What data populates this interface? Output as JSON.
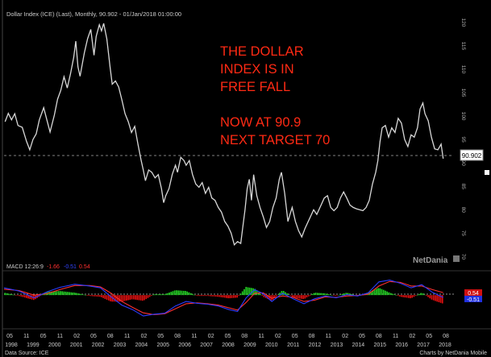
{
  "header": {
    "title": "Dollar Index (ICE) (Last), Monthly, 90.902 - 01/Jan/2018 01:00:00"
  },
  "annotation": {
    "lines": [
      "THE DOLLAR",
      "INDEX IS  IN",
      "FREE FALL",
      "",
      "NOW AT 90.9",
      "NEXT TARGET 70"
    ],
    "color": "#ff2a14"
  },
  "watermark": "NetDania",
  "footer": {
    "source": "Data Source: ICE",
    "credit": "Charts by NetDania Mobile"
  },
  "colors": {
    "background": "#000000",
    "price_line": "#d8d8d8",
    "macd_line": "#2b3cff",
    "signal_line": "#ff3030",
    "hist_pos": "#22cc22",
    "hist_neg": "#e01010"
  },
  "chart_data": [
    {
      "type": "line",
      "title": "Dollar Index (ICE) (Last), Monthly, 90.902 - 01/Jan/2018 01:00:00",
      "ylim": [
        68,
        121
      ],
      "y_ticks": [
        "70",
        "75",
        "80",
        "85",
        "90",
        "95",
        "100",
        "105",
        "110",
        "115",
        "120"
      ],
      "last_value_label": "90.902",
      "series": [
        {
          "points": [
            [
              1997.55,
              98.8
            ],
            [
              1997.7,
              100.6
            ],
            [
              1997.85,
              99.2
            ],
            [
              1998.0,
              100.5
            ],
            [
              1998.15,
              98.0
            ],
            [
              1998.35,
              97.6
            ],
            [
              1998.55,
              94.6
            ],
            [
              1998.7,
              92.8
            ],
            [
              1998.85,
              95.0
            ],
            [
              1999.0,
              96.2
            ],
            [
              1999.15,
              99.2
            ],
            [
              1999.35,
              101.8
            ],
            [
              1999.5,
              99.2
            ],
            [
              1999.65,
              96.6
            ],
            [
              1999.85,
              100.2
            ],
            [
              2000.0,
              103.6
            ],
            [
              2000.15,
              105.5
            ],
            [
              2000.3,
              108.4
            ],
            [
              2000.45,
              106.0
            ],
            [
              2000.6,
              109.0
            ],
            [
              2000.75,
              112.5
            ],
            [
              2000.85,
              116.0
            ],
            [
              2000.95,
              110.5
            ],
            [
              2001.05,
              108.5
            ],
            [
              2001.25,
              113.5
            ],
            [
              2001.4,
              116.5
            ],
            [
              2001.55,
              118.5
            ],
            [
              2001.7,
              113.0
            ],
            [
              2001.8,
              117.0
            ],
            [
              2001.95,
              119.5
            ],
            [
              2002.05,
              118.2
            ],
            [
              2002.15,
              119.8
            ],
            [
              2002.3,
              116.5
            ],
            [
              2002.45,
              110.5
            ],
            [
              2002.55,
              106.8
            ],
            [
              2002.7,
              107.5
            ],
            [
              2002.85,
              106.2
            ],
            [
              2003.0,
              103.5
            ],
            [
              2003.15,
              100.5
            ],
            [
              2003.3,
              98.8
            ],
            [
              2003.45,
              96.5
            ],
            [
              2003.6,
              97.8
            ],
            [
              2003.75,
              94.0
            ],
            [
              2003.9,
              90.5
            ],
            [
              2004.0,
              88.5
            ],
            [
              2004.1,
              86.2
            ],
            [
              2004.25,
              88.5
            ],
            [
              2004.4,
              88.0
            ],
            [
              2004.55,
              86.8
            ],
            [
              2004.7,
              87.5
            ],
            [
              2004.85,
              84.5
            ],
            [
              2004.95,
              81.5
            ],
            [
              2005.05,
              83.0
            ],
            [
              2005.2,
              84.5
            ],
            [
              2005.35,
              87.5
            ],
            [
              2005.5,
              89.5
            ],
            [
              2005.6,
              88.0
            ],
            [
              2005.75,
              91.2
            ],
            [
              2005.9,
              90.5
            ],
            [
              2006.0,
              89.5
            ],
            [
              2006.15,
              90.5
            ],
            [
              2006.3,
              87.5
            ],
            [
              2006.45,
              85.5
            ],
            [
              2006.6,
              84.8
            ],
            [
              2006.75,
              85.8
            ],
            [
              2006.9,
              83.5
            ],
            [
              2007.05,
              84.8
            ],
            [
              2007.2,
              82.5
            ],
            [
              2007.35,
              82.0
            ],
            [
              2007.5,
              80.5
            ],
            [
              2007.65,
              79.5
            ],
            [
              2007.8,
              77.5
            ],
            [
              2007.95,
              76.5
            ],
            [
              2008.1,
              75.0
            ],
            [
              2008.25,
              72.5
            ],
            [
              2008.4,
              73.2
            ],
            [
              2008.55,
              72.8
            ],
            [
              2008.65,
              76.5
            ],
            [
              2008.75,
              80.0
            ],
            [
              2008.85,
              84.5
            ],
            [
              2008.95,
              86.5
            ],
            [
              2009.05,
              82.0
            ],
            [
              2009.15,
              87.5
            ],
            [
              2009.3,
              83.0
            ],
            [
              2009.45,
              80.5
            ],
            [
              2009.6,
              78.5
            ],
            [
              2009.75,
              76.2
            ],
            [
              2009.9,
              77.5
            ],
            [
              2010.05,
              80.5
            ],
            [
              2010.2,
              82.5
            ],
            [
              2010.35,
              86.5
            ],
            [
              2010.45,
              88.0
            ],
            [
              2010.6,
              83.5
            ],
            [
              2010.75,
              77.5
            ],
            [
              2010.85,
              79.0
            ],
            [
              2010.95,
              80.5
            ],
            [
              2011.1,
              77.5
            ],
            [
              2011.25,
              75.5
            ],
            [
              2011.4,
              74.2
            ],
            [
              2011.55,
              76.0
            ],
            [
              2011.7,
              77.5
            ],
            [
              2011.8,
              78.5
            ],
            [
              2011.95,
              80.0
            ],
            [
              2012.1,
              79.0
            ],
            [
              2012.25,
              80.5
            ],
            [
              2012.45,
              82.5
            ],
            [
              2012.6,
              83.0
            ],
            [
              2012.75,
              80.5
            ],
            [
              2012.9,
              79.8
            ],
            [
              2013.05,
              80.5
            ],
            [
              2013.2,
              82.5
            ],
            [
              2013.35,
              83.8
            ],
            [
              2013.5,
              82.5
            ],
            [
              2013.65,
              81.0
            ],
            [
              2013.8,
              80.5
            ],
            [
              2013.95,
              80.2
            ],
            [
              2014.1,
              80.0
            ],
            [
              2014.25,
              79.8
            ],
            [
              2014.4,
              80.5
            ],
            [
              2014.55,
              82.0
            ],
            [
              2014.7,
              85.5
            ],
            [
              2014.85,
              88.0
            ],
            [
              2014.95,
              90.5
            ],
            [
              2015.05,
              94.5
            ],
            [
              2015.15,
              97.5
            ],
            [
              2015.3,
              98.0
            ],
            [
              2015.45,
              95.5
            ],
            [
              2015.6,
              97.5
            ],
            [
              2015.75,
              96.5
            ],
            [
              2015.9,
              99.5
            ],
            [
              2016.05,
              98.5
            ],
            [
              2016.2,
              95.0
            ],
            [
              2016.35,
              93.5
            ],
            [
              2016.5,
              96.0
            ],
            [
              2016.65,
              95.5
            ],
            [
              2016.8,
              97.5
            ],
            [
              2016.92,
              101.5
            ],
            [
              2017.05,
              102.8
            ],
            [
              2017.15,
              100.5
            ],
            [
              2017.3,
              99.0
            ],
            [
              2017.45,
              95.5
            ],
            [
              2017.6,
              93.0
            ],
            [
              2017.75,
              92.8
            ],
            [
              2017.9,
              94.0
            ],
            [
              2018.0,
              90.902
            ]
          ]
        }
      ]
    },
    {
      "type": "line",
      "title": "MACD 12:26:9",
      "ylim": [
        -6,
        5
      ],
      "legend_values": [
        "-1.66",
        "-0.51",
        "0.54"
      ],
      "value_labels": [
        "0.54",
        "-0.51"
      ],
      "series": [
        {
          "name": "MACD",
          "points": [
            [
              1997.5,
              1.6
            ],
            [
              1998.2,
              0.9
            ],
            [
              1998.9,
              -0.6
            ],
            [
              1999.5,
              0.7
            ],
            [
              2000.1,
              1.7
            ],
            [
              2000.8,
              2.4
            ],
            [
              2001.5,
              2.0
            ],
            [
              2002.0,
              1.6
            ],
            [
              2002.5,
              -0.4
            ],
            [
              2003.0,
              -2.2
            ],
            [
              2003.5,
              -3.2
            ],
            [
              2004.0,
              -4.6
            ],
            [
              2004.5,
              -4.2
            ],
            [
              2005.0,
              -4.0
            ],
            [
              2005.5,
              -2.4
            ],
            [
              2006.0,
              -1.4
            ],
            [
              2006.5,
              -1.8
            ],
            [
              2007.0,
              -2.0
            ],
            [
              2007.5,
              -2.4
            ],
            [
              2008.0,
              -3.2
            ],
            [
              2008.4,
              -3.6
            ],
            [
              2008.8,
              -0.6
            ],
            [
              2009.2,
              1.2
            ],
            [
              2009.6,
              0.3
            ],
            [
              2010.0,
              -1.4
            ],
            [
              2010.5,
              0.4
            ],
            [
              2011.0,
              -0.8
            ],
            [
              2011.5,
              -1.9
            ],
            [
              2012.0,
              -0.8
            ],
            [
              2012.5,
              -0.2
            ],
            [
              2013.0,
              -0.6
            ],
            [
              2013.5,
              0.1
            ],
            [
              2014.0,
              -0.2
            ],
            [
              2014.5,
              0.5
            ],
            [
              2015.0,
              2.9
            ],
            [
              2015.5,
              3.3
            ],
            [
              2016.0,
              2.6
            ],
            [
              2016.5,
              1.6
            ],
            [
              2017.0,
              2.3
            ],
            [
              2017.5,
              0.6
            ],
            [
              2018.0,
              -0.51
            ]
          ]
        },
        {
          "name": "Signal",
          "points": [
            [
              1997.5,
              1.3
            ],
            [
              1998.2,
              1.0
            ],
            [
              1998.9,
              0.0
            ],
            [
              1999.5,
              0.3
            ],
            [
              2000.1,
              1.2
            ],
            [
              2000.8,
              2.1
            ],
            [
              2001.5,
              2.1
            ],
            [
              2002.0,
              1.8
            ],
            [
              2002.5,
              0.4
            ],
            [
              2003.0,
              -1.4
            ],
            [
              2003.5,
              -2.7
            ],
            [
              2004.0,
              -3.9
            ],
            [
              2004.5,
              -4.3
            ],
            [
              2005.0,
              -4.1
            ],
            [
              2005.5,
              -3.0
            ],
            [
              2006.0,
              -1.9
            ],
            [
              2006.5,
              -1.7
            ],
            [
              2007.0,
              -1.9
            ],
            [
              2007.5,
              -2.2
            ],
            [
              2008.0,
              -2.8
            ],
            [
              2008.4,
              -3.3
            ],
            [
              2008.8,
              -1.6
            ],
            [
              2009.2,
              0.4
            ],
            [
              2009.6,
              0.5
            ],
            [
              2010.0,
              -0.7
            ],
            [
              2010.5,
              -0.2
            ],
            [
              2011.0,
              -0.5
            ],
            [
              2011.5,
              -1.4
            ],
            [
              2012.0,
              -1.1
            ],
            [
              2012.5,
              -0.4
            ],
            [
              2013.0,
              -0.5
            ],
            [
              2013.5,
              -0.2
            ],
            [
              2014.0,
              -0.1
            ],
            [
              2014.5,
              0.2
            ],
            [
              2015.0,
              2.0
            ],
            [
              2015.5,
              3.0
            ],
            [
              2016.0,
              2.8
            ],
            [
              2016.5,
              2.0
            ],
            [
              2017.0,
              2.0
            ],
            [
              2017.5,
              1.2
            ],
            [
              2018.0,
              0.54
            ]
          ]
        }
      ]
    }
  ],
  "x_axis": {
    "months": [
      "05",
      "11",
      "05",
      "11",
      "02",
      "05",
      "08",
      "11",
      "02",
      "05",
      "08",
      "11",
      "02",
      "05",
      "08",
      "11",
      "02",
      "05",
      "08",
      "11",
      "02",
      "05",
      "08",
      "11",
      "02",
      "05",
      "08"
    ],
    "years": [
      "1998",
      "1999",
      "2000",
      "2001",
      "2002",
      "2003",
      "2004",
      "2005",
      "2006",
      "2007",
      "2008",
      "2009",
      "2010",
      "2011",
      "2012",
      "2013",
      "2014",
      "2015",
      "2016",
      "2017",
      "2018"
    ]
  }
}
